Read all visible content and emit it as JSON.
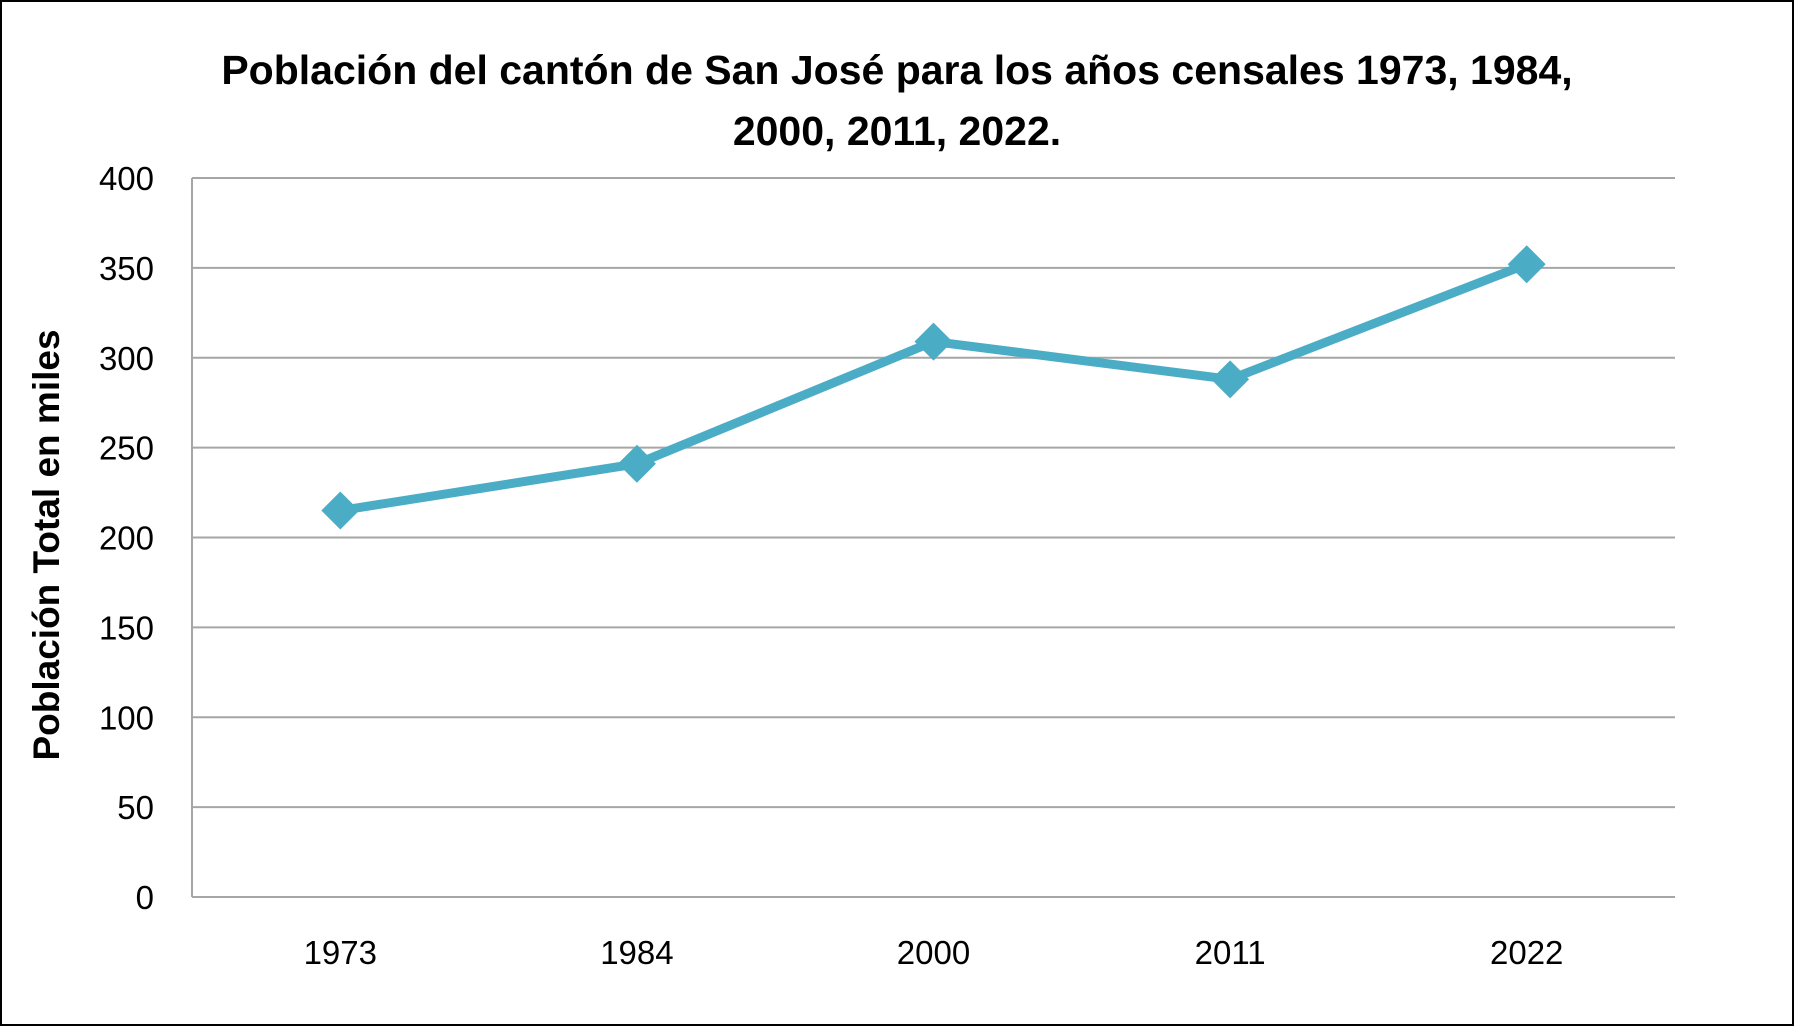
{
  "chart_data": {
    "type": "line",
    "title": "Población del cantón de San José para los años censales 1973, 1984, 2000, 2011, 2022.",
    "xlabel": "",
    "ylabel": "Población Total en miles",
    "categories": [
      "1973",
      "1984",
      "2000",
      "2011",
      "2022"
    ],
    "series": [
      {
        "values": [
          215,
          241,
          309,
          288,
          352
        ],
        "color": "#4bacc6",
        "marker": "diamond"
      }
    ],
    "ylim": [
      0,
      400
    ],
    "yticks": [
      "0",
      "50",
      "100",
      "150",
      "200",
      "250",
      "300",
      "350",
      "400"
    ],
    "grid": "horizontal",
    "legend": "none"
  }
}
